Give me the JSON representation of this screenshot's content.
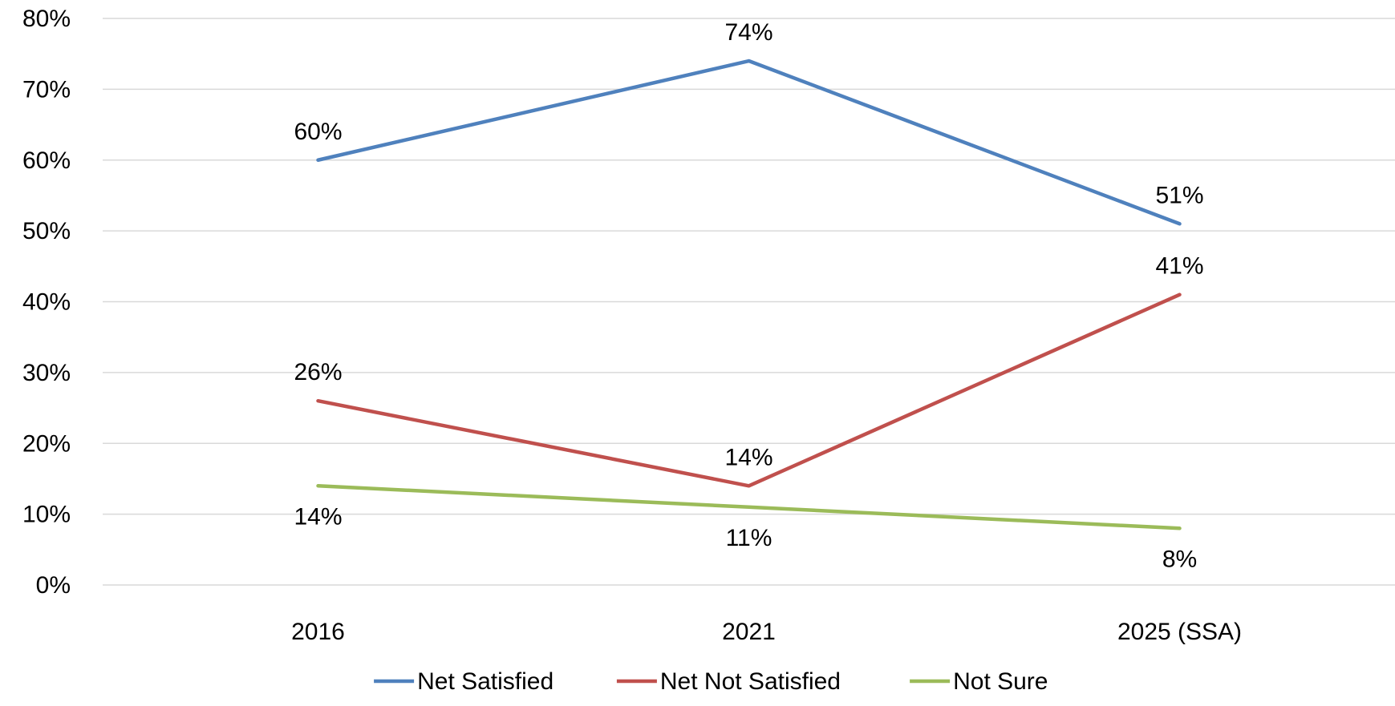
{
  "chart_data": {
    "type": "line",
    "title": "",
    "xlabel": "",
    "ylabel": "",
    "categories": [
      "2016",
      "2021",
      "2025 (SSA)"
    ],
    "ylim": [
      0,
      80
    ],
    "yticks": [
      0,
      10,
      20,
      30,
      40,
      50,
      60,
      70,
      80
    ],
    "ytick_labels": [
      "0%",
      "10%",
      "20%",
      "30%",
      "40%",
      "50%",
      "60%",
      "70%",
      "80%"
    ],
    "grid": true,
    "legend_position": "bottom",
    "series": [
      {
        "name": "Net Satisfied",
        "color": "#4F81BD",
        "values": [
          60,
          74,
          51
        ],
        "labels": [
          "60%",
          "74%",
          "51%"
        ]
      },
      {
        "name": "Net Not Satisfied",
        "color": "#C0504D",
        "values": [
          26,
          14,
          41
        ],
        "labels": [
          "26%",
          "14%",
          "41%"
        ]
      },
      {
        "name": "Not Sure",
        "color": "#9BBB59",
        "values": [
          14,
          11,
          8
        ],
        "labels": [
          "14%",
          "11%",
          "8%"
        ]
      }
    ]
  }
}
